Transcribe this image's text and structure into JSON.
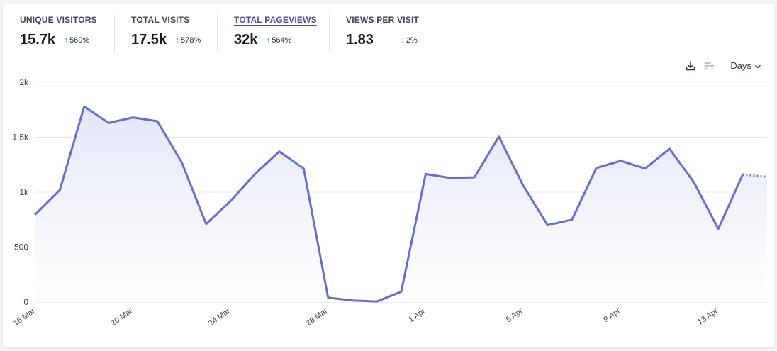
{
  "metrics": [
    {
      "label": "UNIQUE VISITORS",
      "value": "15.7k",
      "direction": "up",
      "change": "560%",
      "active": false
    },
    {
      "label": "TOTAL VISITS",
      "value": "17.5k",
      "direction": "up",
      "change": "578%",
      "active": false
    },
    {
      "label": "TOTAL PAGEVIEWS",
      "value": "32k",
      "direction": "up",
      "change": "564%",
      "active": true
    },
    {
      "label": "VIEWS PER VISIT",
      "value": "1.83",
      "direction": "down",
      "change": "2%",
      "active": false
    }
  ],
  "toolbar": {
    "download_icon": "download-icon",
    "compare_icon": "sort-icon",
    "interval_label": "Days",
    "chevron_icon": "chevron-down-icon"
  },
  "colors": {
    "line": "#6670cc",
    "fill_top": "#e6e8f6",
    "up": "#22a35a",
    "down": "#e0484f",
    "active_metric": "#4b4ea8"
  },
  "chart_data": {
    "type": "area",
    "x": [
      "16 Mar",
      "17 Mar",
      "18 Mar",
      "19 Mar",
      "20 Mar",
      "21 Mar",
      "22 Mar",
      "23 Mar",
      "24 Mar",
      "25 Mar",
      "26 Mar",
      "27 Mar",
      "28 Mar",
      "29 Mar",
      "30 Mar",
      "31 Mar",
      "1 Apr",
      "2 Apr",
      "3 Apr",
      "4 Apr",
      "5 Apr",
      "6 Apr",
      "7 Apr",
      "8 Apr",
      "9 Apr",
      "10 Apr",
      "11 Apr",
      "12 Apr",
      "13 Apr",
      "14 Apr",
      "15 Apr"
    ],
    "series": [
      {
        "values": [
          800,
          1020,
          1780,
          1630,
          1680,
          1645,
          1270,
          710,
          920,
          1165,
          1370,
          1215,
          40,
          15,
          5,
          95,
          1165,
          1130,
          1135,
          1505,
          1060,
          700,
          750,
          1220,
          1285,
          1215,
          1395,
          1090,
          665,
          1160,
          1140
        ]
      }
    ],
    "partial_from_index": 29,
    "xticks": [
      "16 Mar",
      "20 Mar",
      "24 Mar",
      "28 Mar",
      "1 Apr",
      "5 Apr",
      "9 Apr",
      "13 Apr"
    ],
    "yticks": [
      "0",
      "500",
      "1k",
      "1.5k",
      "2k"
    ],
    "ylim": [
      0,
      2000
    ],
    "grid": true
  }
}
